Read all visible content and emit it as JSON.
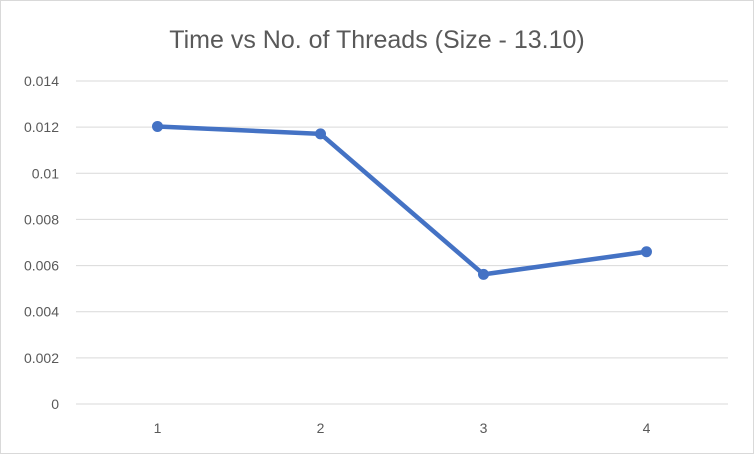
{
  "chart_data": {
    "type": "line",
    "title": "Time vs No. of Threads (Size - 13.10)",
    "xlabel": "",
    "ylabel": "",
    "categories": [
      "1",
      "2",
      "3",
      "4"
    ],
    "series": [
      {
        "values": [
          0.01203,
          0.01171,
          0.00562,
          0.0066
        ]
      }
    ],
    "ylim": [
      0,
      0.014
    ],
    "yticks": [
      "0",
      "0.002",
      "0.004",
      "0.006",
      "0.008",
      "0.01",
      "0.012",
      "0.014"
    ],
    "grid": true,
    "legend": "none",
    "line_color": "#4472c4",
    "grid_color": "#d9d9d9"
  }
}
